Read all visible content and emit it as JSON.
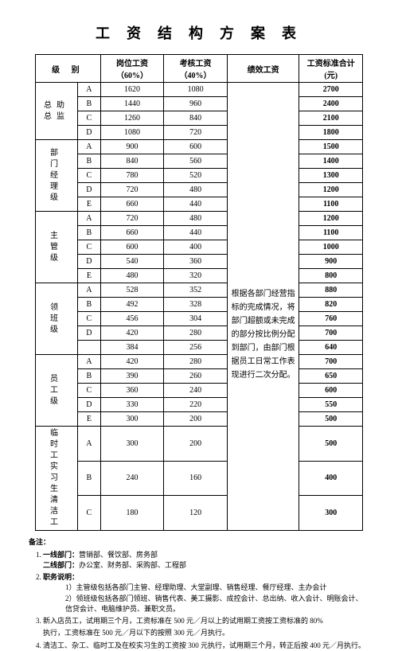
{
  "title": "工 资 结 构 方 案 表",
  "headers": {
    "level": "级  别",
    "position_wage": "岗位工资",
    "position_wage_sub": "（60%）",
    "assess_wage": "考核工资",
    "assess_wage_sub": "（40%）",
    "perf_wage": "绩效工资",
    "total": "工资标准合计(元)"
  },
  "perf_note": "根据各部门经营指标的完成情况，将部门超额或未完成的部分按比例分配到部门，由部门根据员工日常工作表现进行二次分配。",
  "groups": [
    {
      "label": "总助总监",
      "rows": [
        {
          "sub": "A",
          "pos": 1620,
          "asm": 1080,
          "total": 2700
        },
        {
          "sub": "B",
          "pos": 1440,
          "asm": 960,
          "total": 2400
        },
        {
          "sub": "C",
          "pos": 1260,
          "asm": 840,
          "total": 2100
        },
        {
          "sub": "D",
          "pos": 1080,
          "asm": 720,
          "total": 1800
        }
      ]
    },
    {
      "label": "部门经理级",
      "vertical": true,
      "rows": [
        {
          "sub": "A",
          "pos": 900,
          "asm": 600,
          "total": 1500
        },
        {
          "sub": "B",
          "pos": 840,
          "asm": 560,
          "total": 1400
        },
        {
          "sub": "C",
          "pos": 780,
          "asm": 520,
          "total": 1300
        },
        {
          "sub": "D",
          "pos": 720,
          "asm": 480,
          "total": 1200
        },
        {
          "sub": "E",
          "pos": 660,
          "asm": 440,
          "total": 1100
        }
      ]
    },
    {
      "label": "主管级",
      "vertical": true,
      "rows": [
        {
          "sub": "A",
          "pos": 720,
          "asm": 480,
          "total": 1200
        },
        {
          "sub": "B",
          "pos": 660,
          "asm": 440,
          "total": 1100
        },
        {
          "sub": "C",
          "pos": 600,
          "asm": 400,
          "total": 1000
        },
        {
          "sub": "D",
          "pos": 540,
          "asm": 360,
          "total": 900
        },
        {
          "sub": "E",
          "pos": 480,
          "asm": 320,
          "total": 800
        }
      ]
    },
    {
      "label": "领班级",
      "vertical": true,
      "rows": [
        {
          "sub": "A",
          "pos": 528,
          "asm": 352,
          "total": 880
        },
        {
          "sub": "B",
          "pos": 492,
          "asm": 328,
          "total": 820
        },
        {
          "sub": "C",
          "pos": 456,
          "asm": 304,
          "total": 760
        },
        {
          "sub": "D",
          "pos": 420,
          "asm": 280,
          "total": 700
        },
        {
          "sub": "",
          "pos": 384,
          "asm": 256,
          "total": 640
        }
      ]
    },
    {
      "label": "员工级",
      "vertical": true,
      "rows": [
        {
          "sub": "A",
          "pos": 420,
          "asm": 280,
          "total": 700
        },
        {
          "sub": "B",
          "pos": 390,
          "asm": 260,
          "total": 650
        },
        {
          "sub": "C",
          "pos": 360,
          "asm": 240,
          "total": 600
        },
        {
          "sub": "D",
          "pos": 330,
          "asm": 220,
          "total": 550
        },
        {
          "sub": "E",
          "pos": 300,
          "asm": 200,
          "total": 500
        }
      ]
    },
    {
      "label": "临时工实习生清洁工",
      "vertical": true,
      "rows": [
        {
          "sub": "A",
          "pos": 300,
          "asm": 200,
          "total": 500
        },
        {
          "sub": "B",
          "pos": 240,
          "asm": 160,
          "total": 400
        },
        {
          "sub": "C",
          "pos": 180,
          "asm": 120,
          "total": 300
        }
      ]
    }
  ],
  "notes": {
    "header": "备注：",
    "n1_a_label": "一线部门：",
    "n1_a": "营销部、餐饮部、房务部",
    "n1_b_label": "二线部门：",
    "n1_b": "办公室、财务部、采购部、工程部",
    "n2_label": "职务说明：",
    "n2_1": "主管级包括各部门主管、经理助理、大堂副理、销售经理、餐厅经理、主办会计",
    "n2_2": "领班级包括各部门领班、销售代表、美工摄影、成控会计、总出纳、收入会计、明账会计、信贷会计、电脑维护员、兼职文员。",
    "n3": "新入店员工，试用期三个月，工资标准在 500 元／月以上的试用期工资按工资标准的 80%",
    "n3b": "执行，工资标准在 500 元／月以下的按照 300 元／月执行。",
    "n4": "清洁工、杂工、临时工及在校实习生的工资按 300 元执行，试用期三个月，转正后按 400 元／月执行。"
  }
}
